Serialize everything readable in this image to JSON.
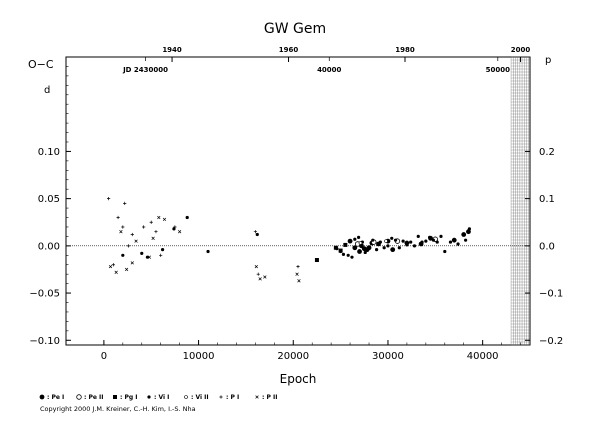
{
  "chart_data": {
    "type": "scatter",
    "title": "GW  Gem",
    "xlabel": "Epoch",
    "ylabel": "O−C",
    "y_unit_left": "d",
    "y_unit_right": "p",
    "xlim": [
      -4000,
      45000
    ],
    "ylim": [
      -0.105,
      0.2
    ],
    "y_left_ticks": [
      "0.10",
      "0.05",
      "0.00",
      "−0.05",
      "−0.10"
    ],
    "y_left_tick_values": [
      0.1,
      0.05,
      0.0,
      -0.05,
      -0.1
    ],
    "y_right_ticks": [
      "0.2",
      "0.1",
      "0.0",
      "−0.1",
      "−0.2"
    ],
    "y_right_tick_values": [
      0.2,
      0.1,
      0.0,
      -0.1,
      -0.2
    ],
    "x_ticks": [
      "0",
      "10000",
      "20000",
      "30000",
      "40000"
    ],
    "x_tick_values": [
      0,
      10000,
      20000,
      30000,
      40000
    ],
    "year_ticks": [
      {
        "label": "1940",
        "epoch": 7200
      },
      {
        "label": "1960",
        "epoch": 19500
      },
      {
        "label": "1980",
        "epoch": 31800
      },
      {
        "label": "2000",
        "epoch": 44000
      }
    ],
    "jd_ticks": [
      {
        "label": "JD 2430000",
        "epoch": 4400
      },
      {
        "label": "40000",
        "epoch": 23800
      },
      {
        "label": "50000",
        "epoch": 41600
      }
    ],
    "future_region_start": 43000,
    "zero_line": 0.0,
    "series": [
      {
        "name": ": Pe I",
        "marker": "filled-circle-large",
        "points": [
          [
            26000,
            0.005
          ],
          [
            26500,
            -0.002
          ],
          [
            27000,
            -0.006
          ],
          [
            27200,
            0.0
          ],
          [
            27500,
            -0.003
          ],
          [
            27800,
            -0.004
          ],
          [
            28000,
            -0.002
          ],
          [
            28300,
            0.003
          ],
          [
            29000,
            0.002
          ],
          [
            30000,
            0.005
          ],
          [
            30500,
            -0.004
          ],
          [
            32000,
            0.003
          ],
          [
            33500,
            0.002
          ],
          [
            34500,
            0.008
          ],
          [
            37000,
            0.006
          ],
          [
            38000,
            0.012
          ],
          [
            38500,
            0.015
          ]
        ]
      },
      {
        "name": ": Pe II",
        "marker": "open-circle",
        "points": [
          [
            26800,
            0.002
          ],
          [
            28500,
            0.004
          ],
          [
            31000,
            0.005
          ],
          [
            35000,
            0.007
          ]
        ]
      },
      {
        "name": ": Pg I",
        "marker": "filled-square",
        "points": [
          [
            22500,
            -0.015
          ],
          [
            24500,
            -0.002
          ],
          [
            25000,
            -0.005
          ],
          [
            25500,
            0.001
          ]
        ]
      },
      {
        "name": ": Vi I",
        "marker": "filled-circle-small",
        "points": [
          [
            24600,
            -0.003
          ],
          [
            25000,
            -0.006
          ],
          [
            25300,
            -0.009
          ],
          [
            25800,
            -0.01
          ],
          [
            26200,
            -0.012
          ],
          [
            26500,
            0.007
          ],
          [
            26900,
            0.009
          ],
          [
            27300,
            0.004
          ],
          [
            27600,
            -0.007
          ],
          [
            28000,
            -0.001
          ],
          [
            28400,
            0.006
          ],
          [
            28800,
            -0.004
          ],
          [
            29200,
            0.004
          ],
          [
            29600,
            -0.002
          ],
          [
            30000,
            0.0
          ],
          [
            30400,
            0.008
          ],
          [
            30800,
            0.006
          ],
          [
            31200,
            -0.002
          ],
          [
            31600,
            0.005
          ],
          [
            32000,
            0.001
          ],
          [
            32400,
            0.004
          ],
          [
            32800,
            0.0
          ],
          [
            33200,
            0.01
          ],
          [
            33600,
            0.004
          ],
          [
            34000,
            0.005
          ],
          [
            34400,
            0.009
          ],
          [
            34800,
            0.006
          ],
          [
            35200,
            0.004
          ],
          [
            35600,
            0.01
          ],
          [
            36000,
            -0.006
          ],
          [
            36600,
            0.004
          ],
          [
            37400,
            0.002
          ],
          [
            38200,
            0.006
          ],
          [
            38600,
            0.018
          ],
          [
            2000,
            -0.01
          ],
          [
            4000,
            -0.008
          ],
          [
            4600,
            -0.012
          ],
          [
            6200,
            -0.004
          ],
          [
            7400,
            0.018
          ],
          [
            8800,
            0.03
          ],
          [
            11000,
            -0.006
          ],
          [
            16200,
            0.012
          ]
        ]
      },
      {
        "name": ": Vi II",
        "marker": "small-open",
        "points": [
          [
            27100,
            0.003
          ],
          [
            29800,
            0.005
          ]
        ]
      },
      {
        "name": ": P I",
        "marker": "plus",
        "points": [
          [
            500,
            0.05
          ],
          [
            1000,
            -0.02
          ],
          [
            1500,
            0.03
          ],
          [
            2000,
            0.02
          ],
          [
            2200,
            0.045
          ],
          [
            2600,
            0.0
          ],
          [
            3000,
            0.012
          ],
          [
            4200,
            0.02
          ],
          [
            5000,
            0.025
          ],
          [
            5500,
            0.015
          ],
          [
            6000,
            -0.01
          ],
          [
            7500,
            0.02
          ],
          [
            16000,
            0.015
          ],
          [
            16300,
            -0.03
          ],
          [
            20500,
            -0.022
          ]
        ]
      },
      {
        "name": ": P II",
        "marker": "cross",
        "points": [
          [
            700,
            -0.022
          ],
          [
            1300,
            -0.028
          ],
          [
            1800,
            0.015
          ],
          [
            2400,
            -0.025
          ],
          [
            3000,
            -0.018
          ],
          [
            3400,
            0.005
          ],
          [
            4800,
            -0.012
          ],
          [
            5200,
            0.008
          ],
          [
            5800,
            0.03
          ],
          [
            6400,
            0.028
          ],
          [
            8000,
            0.015
          ],
          [
            16100,
            -0.022
          ],
          [
            16500,
            -0.035
          ],
          [
            17000,
            -0.033
          ],
          [
            20400,
            -0.03
          ],
          [
            20600,
            -0.037
          ]
        ]
      }
    ]
  },
  "copyright": "Copyright 2000 J.M. Kreiner, C.-H. Kim, I.-S. Nha"
}
